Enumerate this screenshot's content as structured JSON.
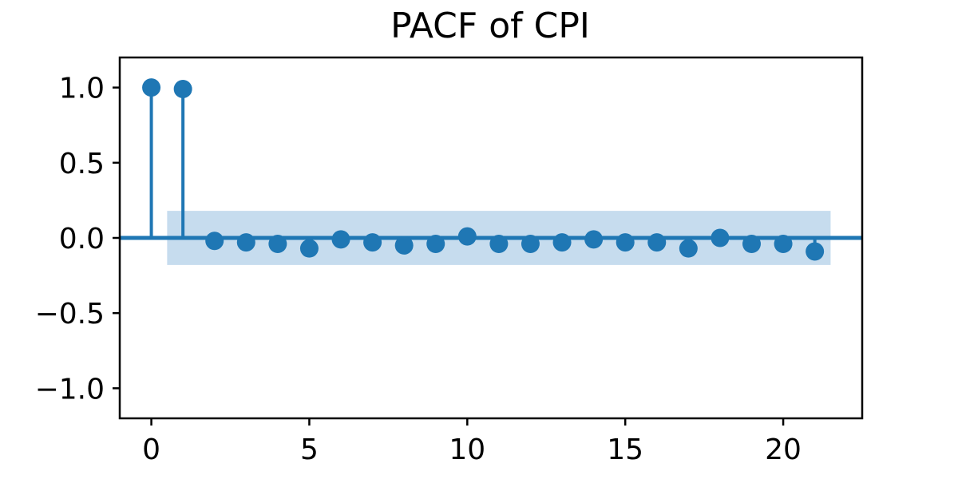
{
  "chart_data": {
    "type": "stem",
    "title": "PACF of CPI",
    "xlabel": "",
    "ylabel": "",
    "xlim": [
      -1,
      22.5
    ],
    "ylim": [
      -1.2,
      1.2
    ],
    "x_ticks": [
      0,
      5,
      10,
      15,
      20
    ],
    "x_tick_labels": [
      "0",
      "5",
      "10",
      "15",
      "20"
    ],
    "y_ticks": [
      1.0,
      0.5,
      0.0,
      -0.5,
      -1.0
    ],
    "y_tick_labels": [
      "1.0",
      "0.5",
      "0.0",
      "−0.5",
      "−1.0"
    ],
    "lags": [
      0,
      1,
      2,
      3,
      4,
      5,
      6,
      7,
      8,
      9,
      10,
      11,
      12,
      13,
      14,
      15,
      16,
      17,
      18,
      19,
      20,
      21
    ],
    "values": [
      1.0,
      0.99,
      -0.02,
      -0.03,
      -0.04,
      -0.07,
      -0.01,
      -0.03,
      -0.05,
      -0.04,
      0.01,
      -0.04,
      -0.04,
      -0.03,
      -0.01,
      -0.03,
      -0.03,
      -0.07,
      0.0,
      -0.04,
      -0.04,
      -0.09
    ],
    "confidence_band": {
      "x_range": [
        0.5,
        21.5
      ],
      "lower": -0.18,
      "upper": 0.18
    },
    "grid": false,
    "legend": "none",
    "colors": {
      "series": "#1f77b4",
      "band": "#c6dcee",
      "axes": "#000000"
    }
  }
}
